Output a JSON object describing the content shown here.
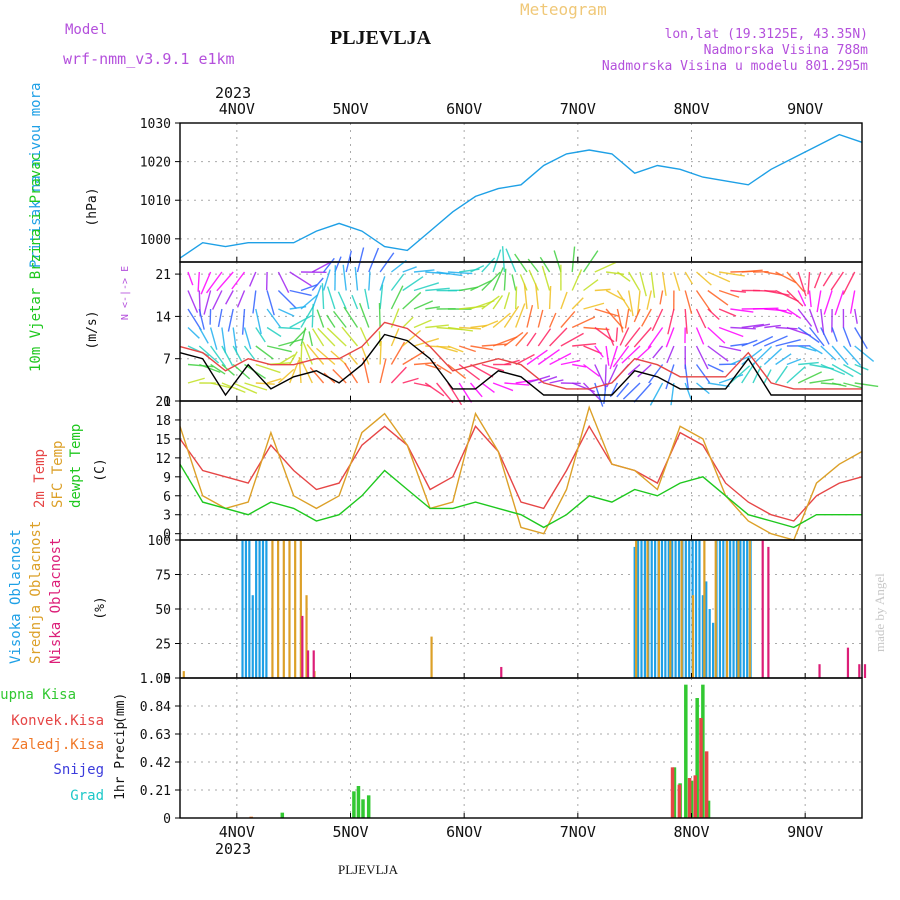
{
  "header": {
    "title": "PLJEVLJA",
    "product": "Meteogram",
    "model_label": "Model",
    "model_name": "wrf-nmm_v3.9.1 e1km",
    "coords": "lon,lat (19.3125E, 43.35N)",
    "elevation": "Nadmorska Visina 788m",
    "model_elevation": "Nadmorska Visina u modelu 801.295m",
    "year": "2023",
    "footer": "PLJEVLJA",
    "credit": "made by Angel"
  },
  "colors": {
    "pressure": "#1ea0e6",
    "temp2m": "#e64646",
    "sfc": "#dca028",
    "dewpt": "#1ec81e",
    "high_cloud": "#1ea0e6",
    "mid_cloud": "#dca028",
    "low_cloud": "#dc1e78",
    "total_precip": "#32c832",
    "conv_precip": "#e64646",
    "frz_precip": "#f07828",
    "snow": "#3c3cdc",
    "hail": "#1ec8c8",
    "purple": "#b450dc",
    "header_orange": "#f0c878",
    "grid": "#aaaaaa"
  },
  "chart_data": [
    {
      "type": "line",
      "panel": "pressure",
      "ylabel": "Pritisak na nivou mora",
      "unit": "(hPa)",
      "x_unit": "days from 3NOV 12UTC",
      "ylim": [
        994,
        1030
      ],
      "yticks": [
        1000,
        1010,
        1020,
        1030
      ],
      "series": [
        {
          "name": "Pritisak na nivou mora",
          "x": [
            0,
            0.2,
            0.4,
            0.6,
            0.8,
            1.0,
            1.2,
            1.4,
            1.6,
            1.8,
            2.0,
            2.2,
            2.4,
            2.6,
            2.8,
            3.0,
            3.2,
            3.4,
            3.6,
            3.8,
            4.0,
            4.2,
            4.4,
            4.6,
            4.8,
            5.0,
            5.2,
            5.4,
            5.6,
            5.8,
            6.0
          ],
          "values": [
            995,
            999,
            998,
            999,
            999,
            999,
            1002,
            1004,
            1002,
            998,
            997,
            1002,
            1007,
            1011,
            1013,
            1014,
            1019,
            1022,
            1023,
            1022,
            1017,
            1019,
            1018,
            1016,
            1015,
            1014,
            1018,
            1021,
            1024,
            1027,
            1025
          ]
        }
      ]
    },
    {
      "type": "line",
      "panel": "wind",
      "ylabel": "10m Vjetar Brzina i Pravac",
      "unit": "(m/s)",
      "ylim": [
        0,
        23
      ],
      "yticks": [
        0,
        7,
        14,
        21
      ],
      "legend": "N <-|-> E",
      "series": [
        {
          "name": "Brzina",
          "x": [
            0,
            0.2,
            0.4,
            0.6,
            0.8,
            1.0,
            1.2,
            1.4,
            1.6,
            1.8,
            2.0,
            2.2,
            2.4,
            2.6,
            2.8,
            3.0,
            3.2,
            3.4,
            3.6,
            3.8,
            4.0,
            4.2,
            4.4,
            4.6,
            4.8,
            5.0,
            5.2,
            5.4,
            5.6,
            5.8,
            6.0
          ],
          "values": [
            8,
            7,
            1,
            6,
            2,
            4,
            5,
            3,
            6,
            11,
            10,
            7,
            2,
            2,
            5,
            4,
            1,
            1,
            1,
            1,
            5,
            4,
            2,
            2,
            2,
            7,
            1,
            1,
            1,
            1,
            1
          ]
        },
        {
          "name": "Udari",
          "x": [
            0,
            0.2,
            0.4,
            0.6,
            0.8,
            1.0,
            1.2,
            1.4,
            1.6,
            1.8,
            2.0,
            2.2,
            2.4,
            2.6,
            2.8,
            3.0,
            3.2,
            3.4,
            3.6,
            3.8,
            4.0,
            4.2,
            4.4,
            4.6,
            4.8,
            5.0,
            5.2,
            5.4,
            5.6,
            5.8,
            6.0
          ],
          "values": [
            9,
            8,
            5,
            7,
            6,
            6,
            7,
            7,
            9,
            13,
            12,
            9,
            5,
            6,
            7,
            6,
            3,
            2,
            2,
            3,
            7,
            6,
            4,
            4,
            4,
            8,
            3,
            2,
            2,
            2,
            2
          ]
        }
      ],
      "arrow_colors": [
        "#ff00ff",
        "#a020f0",
        "#3060ff",
        "#20b0f0",
        "#20d0c0",
        "#40d040",
        "#c0e020",
        "#f0c020",
        "#ff6020",
        "#ff2060"
      ]
    },
    {
      "type": "line",
      "panel": "temperature",
      "unit": "(C)",
      "ylim": [
        -1,
        21
      ],
      "yticks": [
        0,
        3,
        6,
        9,
        12,
        15,
        18,
        21
      ],
      "series": [
        {
          "name": "2m Temp",
          "x": [
            0,
            0.2,
            0.4,
            0.6,
            0.8,
            1.0,
            1.2,
            1.4,
            1.6,
            1.8,
            2.0,
            2.2,
            2.4,
            2.6,
            2.8,
            3.0,
            3.2,
            3.4,
            3.6,
            3.8,
            4.0,
            4.2,
            4.4,
            4.6,
            4.8,
            5.0,
            5.2,
            5.4,
            5.6,
            5.8,
            6.0
          ],
          "values": [
            15,
            10,
            9,
            8,
            14,
            10,
            7,
            8,
            14,
            17,
            14,
            7,
            9,
            17,
            13,
            5,
            4,
            10,
            17,
            11,
            10,
            8,
            16,
            14,
            8,
            5,
            3,
            2,
            6,
            8,
            9
          ]
        },
        {
          "name": "SFC Temp",
          "x": [
            0,
            0.2,
            0.4,
            0.6,
            0.8,
            1.0,
            1.2,
            1.4,
            1.6,
            1.8,
            2.0,
            2.2,
            2.4,
            2.6,
            2.8,
            3.0,
            3.2,
            3.4,
            3.6,
            3.8,
            4.0,
            4.2,
            4.4,
            4.6,
            4.8,
            5.0,
            5.2,
            5.4,
            5.6,
            5.8,
            6.0
          ],
          "values": [
            17,
            6,
            4,
            5,
            16,
            6,
            4,
            6,
            16,
            19,
            14,
            4,
            5,
            19,
            13,
            1,
            0,
            7,
            20,
            11,
            10,
            7,
            17,
            15,
            6,
            2,
            0,
            -1,
            8,
            11,
            13
          ]
        },
        {
          "name": "dewpt Temp",
          "x": [
            0,
            0.2,
            0.4,
            0.6,
            0.8,
            1.0,
            1.2,
            1.4,
            1.6,
            1.8,
            2.0,
            2.2,
            2.4,
            2.6,
            2.8,
            3.0,
            3.2,
            3.4,
            3.6,
            3.8,
            4.0,
            4.2,
            4.4,
            4.6,
            4.8,
            5.0,
            5.2,
            5.4,
            5.6,
            5.8,
            6.0
          ],
          "values": [
            11,
            5,
            4,
            3,
            5,
            4,
            2,
            3,
            6,
            10,
            7,
            4,
            4,
            5,
            4,
            3,
            1,
            3,
            6,
            5,
            7,
            6,
            8,
            9,
            6,
            3,
            2,
            1,
            3,
            3,
            3
          ]
        }
      ]
    },
    {
      "type": "bar",
      "panel": "cloud",
      "unit": "(%)",
      "ylim": [
        0,
        100
      ],
      "yticks": [
        0,
        25,
        50,
        75,
        100
      ],
      "series": [
        {
          "name": "Visoka Oblacnost",
          "x": [
            0.55,
            0.58,
            0.61,
            0.64,
            0.67,
            0.7,
            0.73,
            0.76,
            4.0,
            4.03,
            4.06,
            4.09,
            4.12,
            4.15,
            4.18,
            4.21,
            4.24,
            4.27,
            4.3,
            4.33,
            4.36,
            4.39,
            4.42,
            4.45,
            4.48,
            4.51,
            4.54,
            4.57,
            4.6,
            4.63,
            4.66,
            4.69,
            4.72,
            4.75,
            4.78,
            4.81,
            4.84,
            4.87,
            4.9,
            4.93,
            4.96,
            4.99,
            5.02
          ],
          "values": [
            100,
            100,
            100,
            60,
            100,
            100,
            100,
            100,
            95,
            100,
            100,
            100,
            100,
            100,
            100,
            100,
            100,
            100,
            100,
            100,
            100,
            100,
            100,
            100,
            100,
            100,
            100,
            100,
            60,
            70,
            50,
            40,
            100,
            100,
            100,
            100,
            100,
            100,
            100,
            100,
            100,
            100,
            100
          ]
        },
        {
          "name": "Srednja Oblacnost",
          "x": [
            0.02,
            0.8,
            0.85,
            0.9,
            0.95,
            1.0,
            1.05,
            1.1,
            1.17,
            2.2,
            4.0,
            4.1,
            4.2,
            4.3,
            4.4,
            4.5,
            4.6,
            4.7,
            4.8,
            4.9,
            5.0
          ],
          "values": [
            5,
            100,
            100,
            100,
            100,
            100,
            100,
            60,
            5,
            30,
            100,
            100,
            100,
            100,
            100,
            60,
            100,
            100,
            100,
            100,
            100
          ]
        },
        {
          "name": "Niska Oblacnost",
          "x": [
            1.05,
            1.1,
            1.15,
            2.8,
            5.1,
            5.15,
            5.6,
            5.85,
            5.95,
            6.0
          ],
          "values": [
            45,
            20,
            20,
            8,
            100,
            95,
            10,
            22,
            10,
            10
          ]
        }
      ]
    },
    {
      "type": "bar",
      "panel": "precip",
      "ylabel": "1hr Precip",
      "unit": "(mm)",
      "ylim": [
        0,
        1.05
      ],
      "yticks": [
        0,
        0.21,
        0.42,
        0.63,
        0.84,
        1.05
      ],
      "series": [
        {
          "name": "Ukupna Kisa",
          "x": [
            0.9,
            1.53,
            1.57,
            1.61,
            1.66,
            4.35,
            4.4,
            4.45,
            4.5,
            4.55,
            4.6,
            4.65
          ],
          "values": [
            0.04,
            0.2,
            0.24,
            0.14,
            0.17,
            0.38,
            0.26,
            1.0,
            0.28,
            0.9,
            1.0,
            0.13
          ]
        },
        {
          "name": "Konvek.Kisa",
          "x": [
            4.32,
            4.38,
            4.47,
            4.52,
            4.57,
            4.62
          ],
          "values": [
            0.38,
            0.25,
            0.3,
            0.32,
            0.75,
            0.5
          ]
        },
        {
          "name": "Zaledj.Kisa",
          "x": [
            0.6
          ],
          "values": [
            0.01
          ]
        },
        {
          "name": "Snijeg",
          "x": [],
          "values": []
        },
        {
          "name": "Grad",
          "x": [],
          "values": []
        }
      ]
    }
  ],
  "x_axis": {
    "ticks": [
      "4NOV",
      "5NOV",
      "6NOV",
      "7NOV",
      "8NOV",
      "9NOV"
    ],
    "tick_x": [
      0.5,
      1.5,
      2.5,
      3.5,
      4.5,
      5.5
    ],
    "xlim": [
      0,
      6
    ]
  },
  "legend": {
    "temp": [
      "2m Temp",
      "SFC Temp",
      "dewpt Temp"
    ],
    "cloud": [
      "Visoka Oblacnost",
      "Srednja Oblacnost",
      "Niska Oblacnost"
    ],
    "precip": [
      "Ukupna Kisa",
      "Konvek.Kisa",
      "Zaledj.Kisa",
      "Snijeg",
      "Grad"
    ]
  }
}
